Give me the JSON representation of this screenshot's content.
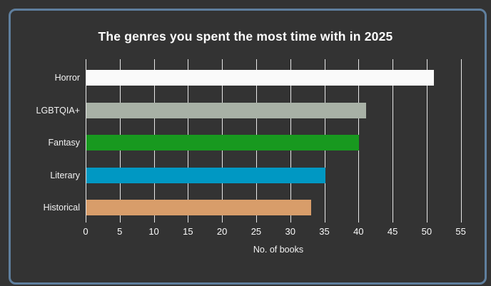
{
  "frame": {
    "background_color": "#333333",
    "border_color": "#5f7f9e"
  },
  "chart_data": {
    "type": "bar",
    "orientation": "horizontal",
    "title": "The genres you spent the most time with in 2025",
    "categories": [
      "Horror",
      "LGBTQIA+",
      "Fantasy",
      "Literary",
      "Historical"
    ],
    "values": [
      51,
      41,
      40,
      35,
      33
    ],
    "bar_colors": [
      "#fafafa",
      "#a8b1a6",
      "#18991f",
      "#0098c3",
      "#d89d6a"
    ],
    "xlabel": "No. of books",
    "xticks": [
      0,
      5,
      10,
      15,
      20,
      25,
      30,
      35,
      40,
      45,
      50,
      55
    ],
    "xlim": [
      0,
      56.5
    ],
    "grid": true,
    "gridline_color": "#e8e8e8",
    "text_color": "#ffffff",
    "legend": false
  }
}
